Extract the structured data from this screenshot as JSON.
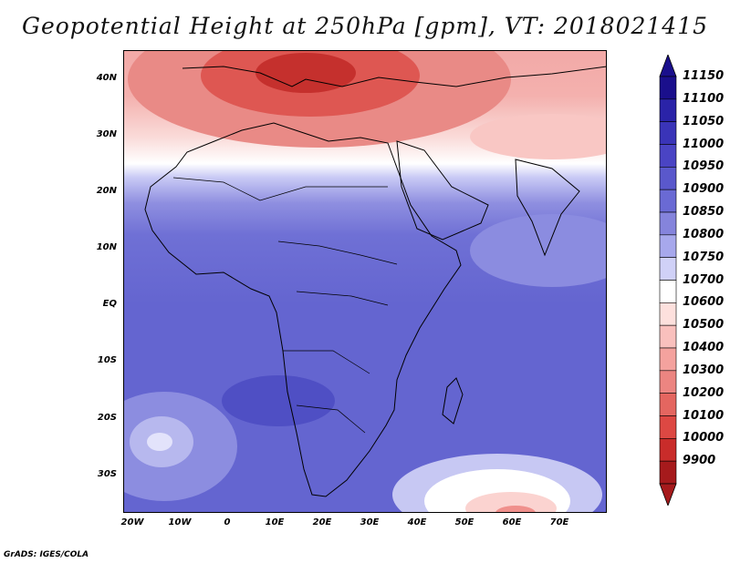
{
  "title": "Geopotential Height at 250hPa [gpm], VT: 2018021415",
  "credit": "GrADS: IGES/COLA",
  "map": {
    "projection": "lat-lon",
    "lon_range": [
      -22,
      80
    ],
    "lat_range": [
      -37,
      45
    ],
    "y_ticks": [
      "40N",
      "30N",
      "20N",
      "10N",
      "EQ",
      "10S",
      "20S",
      "30S"
    ],
    "x_ticks": [
      "20W",
      "10W",
      "0",
      "10E",
      "20E",
      "30E",
      "40E",
      "50E",
      "60E",
      "70E"
    ]
  },
  "colorbar": {
    "levels": [
      "11150",
      "11100",
      "11050",
      "11000",
      "10950",
      "10900",
      "10850",
      "10800",
      "10750",
      "10700",
      "10600",
      "10500",
      "10400",
      "10300",
      "10200",
      "10100",
      "10000",
      "9900"
    ],
    "colors": [
      "#1a0f8c",
      "#2a23a8",
      "#3a34b8",
      "#4a44c4",
      "#5a58cc",
      "#6a6ad4",
      "#8584dc",
      "#a7a8ec",
      "#d0d1f7",
      "#ffffff",
      "#fde0dd",
      "#f9c0bd",
      "#f4a29e",
      "#ec8581",
      "#e46660",
      "#dd4843",
      "#c92c2a",
      "#a61a1c"
    ]
  }
}
